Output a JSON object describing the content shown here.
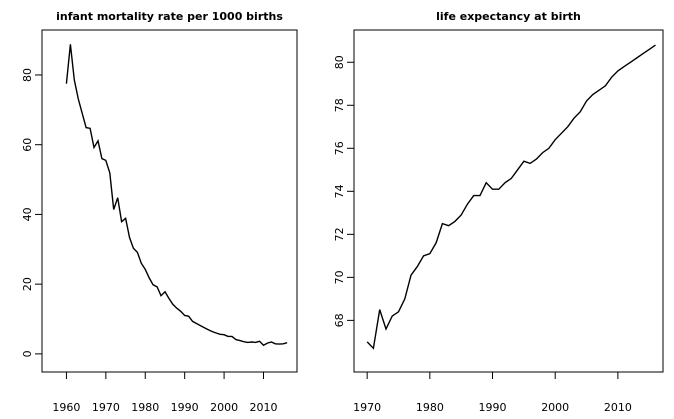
{
  "chart_data": [
    {
      "type": "line",
      "title": "infant mortality rate per 1000 births",
      "color": "#000000",
      "x": [
        1960,
        1961,
        1962,
        1963,
        1964,
        1965,
        1966,
        1967,
        1968,
        1969,
        1970,
        1971,
        1972,
        1973,
        1974,
        1975,
        1976,
        1977,
        1978,
        1979,
        1980,
        1981,
        1982,
        1983,
        1984,
        1985,
        1986,
        1987,
        1988,
        1989,
        1990,
        1991,
        1992,
        1993,
        1994,
        1995,
        1996,
        1997,
        1998,
        1999,
        2000,
        2001,
        2002,
        2003,
        2004,
        2005,
        2006,
        2007,
        2008,
        2009,
        2010,
        2011,
        2012,
        2013,
        2014,
        2015,
        2016
      ],
      "values": [
        77.5,
        88.8,
        78.6,
        73.1,
        69.0,
        64.9,
        64.7,
        59.2,
        61.1,
        56.0,
        55.5,
        51.9,
        41.4,
        44.8,
        37.9,
        38.9,
        33.4,
        30.3,
        29.1,
        26.0,
        24.2,
        21.8,
        19.8,
        19.2,
        16.7,
        17.8,
        15.9,
        14.2,
        13.1,
        12.2,
        11.0,
        10.8,
        9.3,
        8.7,
        8.1,
        7.5,
        6.9,
        6.4,
        6.0,
        5.6,
        5.5,
        5.0,
        5.0,
        4.1,
        3.8,
        3.5,
        3.3,
        3.4,
        3.3,
        3.6,
        2.5,
        3.1,
        3.4,
        2.9,
        2.8,
        2.9,
        3.2
      ],
      "xlim": [
        1953.8,
        2018.5
      ],
      "ylim": [
        -5.2,
        92.9
      ],
      "xticks": [
        1960,
        1970,
        1980,
        1990,
        2000,
        2010
      ],
      "yticks": [
        0,
        20,
        40,
        60,
        80
      ]
    },
    {
      "type": "line",
      "title": "life expectancy at birth",
      "color": "#000000",
      "x": [
        1970,
        1971,
        1972,
        1973,
        1974,
        1975,
        1976,
        1977,
        1978,
        1979,
        1980,
        1981,
        1982,
        1983,
        1984,
        1985,
        1986,
        1987,
        1988,
        1989,
        1990,
        1991,
        1992,
        1993,
        1994,
        1995,
        1996,
        1997,
        1998,
        1999,
        2000,
        2001,
        2002,
        2003,
        2004,
        2005,
        2006,
        2007,
        2008,
        2009,
        2010,
        2011,
        2012,
        2013,
        2014,
        2015,
        2016
      ],
      "values": [
        67.0,
        66.7,
        68.5,
        67.6,
        68.2,
        68.4,
        69.0,
        70.1,
        70.5,
        71.0,
        71.1,
        71.6,
        72.5,
        72.4,
        72.6,
        72.9,
        73.4,
        73.8,
        73.8,
        74.4,
        74.1,
        74.1,
        74.4,
        74.6,
        75.0,
        75.4,
        75.3,
        75.5,
        75.8,
        76.0,
        76.4,
        76.7,
        77.0,
        77.4,
        77.7,
        78.2,
        78.5,
        78.7,
        78.9,
        79.3,
        79.6,
        79.8,
        80.0,
        80.2,
        80.4,
        80.6,
        80.8
      ],
      "xlim": [
        1967.9,
        2017.2
      ],
      "ylim": [
        65.6,
        81.5
      ],
      "xticks": [
        1970,
        1980,
        1990,
        2000,
        2010
      ],
      "yticks": [
        68,
        70,
        72,
        74,
        76,
        78,
        80
      ]
    }
  ]
}
